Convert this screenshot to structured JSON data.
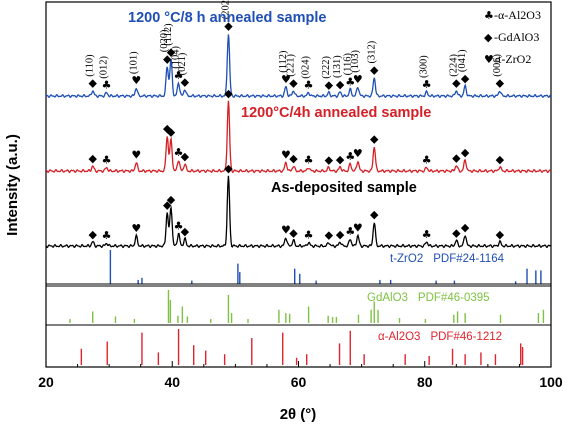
{
  "chart_data": {
    "type": "line",
    "xlabel": "2θ (°)",
    "ylabel": "Intensity (a.u.)",
    "xlim": [
      20,
      100
    ],
    "xticks": [
      "20",
      "40",
      "60",
      "80",
      "100"
    ],
    "legend": [
      {
        "symbol": "♣",
        "label": "-α-Al2O3"
      },
      {
        "symbol": "◆",
        "label": "-GdAlO3"
      },
      {
        "symbol": "♥",
        "label": "-t-ZrO2"
      }
    ],
    "series": [
      {
        "name": "1200 °C/8 h annealed sample",
        "color": "#1f4fb4",
        "peaks": [
          {
            "x": 27.4,
            "h": 0.08,
            "sym": "◆",
            "hkl": "(110)"
          },
          {
            "x": 29.6,
            "h": 0.05,
            "sym": "♣",
            "hkl": "(012)"
          },
          {
            "x": 34.3,
            "h": 0.12,
            "sym": "♥",
            "hkl": "(101)"
          },
          {
            "x": 39.2,
            "h": 0.45,
            "sym": "◆",
            "hkl": "(020)"
          },
          {
            "x": 39.8,
            "h": 0.55,
            "sym": "◆",
            "hkl": "(112)"
          },
          {
            "x": 41.0,
            "h": 0.2,
            "sym": "♣",
            "hkl": "(104)"
          },
          {
            "x": 42.0,
            "h": 0.1,
            "sym": "◆",
            "hkl": "(021)"
          },
          {
            "x": 48.9,
            "h": 0.95,
            "sym": "◆",
            "hkl": "(202)"
          },
          {
            "x": 58.0,
            "h": 0.14,
            "sym": "♥",
            "hkl": "(112)"
          },
          {
            "x": 59.2,
            "h": 0.08,
            "sym": "◆",
            "hkl": "(221)"
          },
          {
            "x": 61.6,
            "h": 0.05,
            "sym": "♣",
            "hkl": "(024)"
          },
          {
            "x": 64.8,
            "h": 0.05,
            "sym": "◆",
            "hkl": "(222)"
          },
          {
            "x": 66.6,
            "h": 0.06,
            "sym": "◆",
            "hkl": "(131)"
          },
          {
            "x": 68.2,
            "h": 0.1,
            "sym": "♣",
            "hkl": "(116)"
          },
          {
            "x": 69.4,
            "h": 0.14,
            "sym": "♥",
            "hkl": "(103)"
          },
          {
            "x": 72.0,
            "h": 0.28,
            "sym": "◆",
            "hkl": "(312)"
          },
          {
            "x": 80.3,
            "h": 0.06,
            "sym": "♣",
            "hkl": "(300)"
          },
          {
            "x": 85.0,
            "h": 0.08,
            "sym": "◆",
            "hkl": "(224)"
          },
          {
            "x": 86.4,
            "h": 0.15,
            "sym": "◆",
            "hkl": "(041)"
          },
          {
            "x": 91.9,
            "h": 0.08,
            "sym": "◆",
            "hkl": "(006)"
          }
        ]
      },
      {
        "name": "1200°C/4h annealed sample",
        "color": "#d42026",
        "peaks": [
          {
            "x": 27.4,
            "h": 0.07,
            "sym": "◆"
          },
          {
            "x": 29.6,
            "h": 0.05,
            "sym": "♣"
          },
          {
            "x": 34.3,
            "h": 0.12,
            "sym": "♥"
          },
          {
            "x": 39.2,
            "h": 0.5,
            "sym": "◆"
          },
          {
            "x": 39.8,
            "h": 0.45,
            "sym": "◆"
          },
          {
            "x": 41.0,
            "h": 0.16,
            "sym": "♣"
          },
          {
            "x": 42.0,
            "h": 0.1,
            "sym": "◆"
          },
          {
            "x": 48.9,
            "h": 1.0,
            "sym": "◆"
          },
          {
            "x": 58.0,
            "h": 0.12,
            "sym": "♥"
          },
          {
            "x": 59.2,
            "h": 0.07,
            "sym": "◆"
          },
          {
            "x": 61.6,
            "h": 0.05,
            "sym": "♣"
          },
          {
            "x": 64.8,
            "h": 0.05,
            "sym": "◆"
          },
          {
            "x": 66.6,
            "h": 0.06,
            "sym": "◆"
          },
          {
            "x": 68.2,
            "h": 0.1,
            "sym": "♣"
          },
          {
            "x": 69.4,
            "h": 0.14,
            "sym": "♥"
          },
          {
            "x": 72.0,
            "h": 0.35,
            "sym": "◆"
          },
          {
            "x": 80.3,
            "h": 0.05,
            "sym": "♣"
          },
          {
            "x": 85.0,
            "h": 0.08,
            "sym": "◆"
          },
          {
            "x": 86.4,
            "h": 0.16,
            "sym": "◆"
          },
          {
            "x": 91.9,
            "h": 0.06,
            "sym": "◆"
          }
        ]
      },
      {
        "name": "As-deposited sample",
        "color": "#000000",
        "peaks": [
          {
            "x": 27.4,
            "h": 0.06,
            "sym": "◆"
          },
          {
            "x": 29.6,
            "h": 0.04,
            "sym": "♣"
          },
          {
            "x": 34.3,
            "h": 0.14,
            "sym": "♥"
          },
          {
            "x": 39.2,
            "h": 0.48,
            "sym": "◆"
          },
          {
            "x": 39.8,
            "h": 0.56,
            "sym": "◆"
          },
          {
            "x": 41.0,
            "h": 0.18,
            "sym": "♣"
          },
          {
            "x": 42.0,
            "h": 0.1,
            "sym": "◆"
          },
          {
            "x": 48.9,
            "h": 1.0,
            "sym": "◆"
          },
          {
            "x": 58.0,
            "h": 0.12,
            "sym": "♥"
          },
          {
            "x": 59.2,
            "h": 0.08,
            "sym": "◆"
          },
          {
            "x": 61.6,
            "h": 0.05,
            "sym": "♣"
          },
          {
            "x": 64.8,
            "h": 0.05,
            "sym": "◆"
          },
          {
            "x": 66.6,
            "h": 0.06,
            "sym": "◆"
          },
          {
            "x": 68.2,
            "h": 0.1,
            "sym": "♣"
          },
          {
            "x": 69.4,
            "h": 0.15,
            "sym": "♥"
          },
          {
            "x": 72.0,
            "h": 0.34,
            "sym": "◆"
          },
          {
            "x": 80.3,
            "h": 0.06,
            "sym": "♣"
          },
          {
            "x": 85.0,
            "h": 0.08,
            "sym": "◆"
          },
          {
            "x": 86.4,
            "h": 0.16,
            "sym": "◆"
          },
          {
            "x": 91.9,
            "h": 0.06,
            "sym": "◆"
          }
        ]
      }
    ],
    "references": [
      {
        "name": "t-ZrO2",
        "pdf": "PDF#24-1164",
        "color": "#1f4fb4",
        "lines": [
          {
            "x": 30.2,
            "h": 1.0
          },
          {
            "x": 34.6,
            "h": 0.12
          },
          {
            "x": 35.2,
            "h": 0.18
          },
          {
            "x": 43.1,
            "h": 0.1
          },
          {
            "x": 50.4,
            "h": 0.6
          },
          {
            "x": 50.7,
            "h": 0.35
          },
          {
            "x": 59.4,
            "h": 0.45
          },
          {
            "x": 60.2,
            "h": 0.3
          },
          {
            "x": 62.8,
            "h": 0.1
          },
          {
            "x": 72.9,
            "h": 0.12
          },
          {
            "x": 74.6,
            "h": 0.12
          },
          {
            "x": 81.8,
            "h": 0.1
          },
          {
            "x": 84.7,
            "h": 0.1
          },
          {
            "x": 94.4,
            "h": 0.08
          },
          {
            "x": 96.2,
            "h": 0.45
          },
          {
            "x": 97.6,
            "h": 0.4
          },
          {
            "x": 98.4,
            "h": 0.4
          }
        ]
      },
      {
        "name": "GdAlO3",
        "pdf": "PDF#46-0395",
        "color": "#7dc242",
        "lines": [
          {
            "x": 23.8,
            "h": 0.12
          },
          {
            "x": 27.4,
            "h": 0.35
          },
          {
            "x": 31.0,
            "h": 0.2
          },
          {
            "x": 34.0,
            "h": 0.12
          },
          {
            "x": 39.4,
            "h": 1.0
          },
          {
            "x": 39.7,
            "h": 0.7
          },
          {
            "x": 40.9,
            "h": 0.22
          },
          {
            "x": 41.6,
            "h": 0.5
          },
          {
            "x": 42.4,
            "h": 0.2
          },
          {
            "x": 46.1,
            "h": 0.12
          },
          {
            "x": 48.9,
            "h": 0.85
          },
          {
            "x": 49.4,
            "h": 0.3
          },
          {
            "x": 52.0,
            "h": 0.12
          },
          {
            "x": 56.9,
            "h": 0.4
          },
          {
            "x": 58.0,
            "h": 0.3
          },
          {
            "x": 58.6,
            "h": 0.28
          },
          {
            "x": 61.6,
            "h": 0.5
          },
          {
            "x": 64.7,
            "h": 0.22
          },
          {
            "x": 65.4,
            "h": 0.18
          },
          {
            "x": 66.0,
            "h": 0.18
          },
          {
            "x": 69.5,
            "h": 0.25
          },
          {
            "x": 71.5,
            "h": 0.4
          },
          {
            "x": 72.0,
            "h": 0.65
          },
          {
            "x": 72.6,
            "h": 0.4
          },
          {
            "x": 76.0,
            "h": 0.15
          },
          {
            "x": 80.1,
            "h": 0.12
          },
          {
            "x": 84.6,
            "h": 0.25
          },
          {
            "x": 85.2,
            "h": 0.35
          },
          {
            "x": 86.4,
            "h": 0.3
          },
          {
            "x": 92.0,
            "h": 0.25
          },
          {
            "x": 98.0,
            "h": 0.3
          },
          {
            "x": 98.8,
            "h": 0.4
          }
        ]
      },
      {
        "name": "α-Al2O3",
        "pdf": "PDF#46-1212",
        "color": "#e0242d",
        "lines": [
          {
            "x": 25.6,
            "h": 0.45
          },
          {
            "x": 29.7,
            "h": 0.65
          },
          {
            "x": 35.2,
            "h": 0.9
          },
          {
            "x": 37.8,
            "h": 0.35
          },
          {
            "x": 41.0,
            "h": 1.0
          },
          {
            "x": 43.4,
            "h": 0.55
          },
          {
            "x": 45.3,
            "h": 0.4
          },
          {
            "x": 48.3,
            "h": 0.3
          },
          {
            "x": 52.6,
            "h": 0.75
          },
          {
            "x": 57.5,
            "h": 0.9
          },
          {
            "x": 59.7,
            "h": 0.2
          },
          {
            "x": 61.3,
            "h": 0.3
          },
          {
            "x": 66.5,
            "h": 0.6
          },
          {
            "x": 68.2,
            "h": 0.95
          },
          {
            "x": 70.4,
            "h": 0.3
          },
          {
            "x": 76.9,
            "h": 0.3
          },
          {
            "x": 80.7,
            "h": 0.25
          },
          {
            "x": 84.4,
            "h": 0.45
          },
          {
            "x": 86.4,
            "h": 0.3
          },
          {
            "x": 88.9,
            "h": 0.35
          },
          {
            "x": 91.2,
            "h": 0.3
          },
          {
            "x": 95.2,
            "h": 0.6
          },
          {
            "x": 95.5,
            "h": 0.5
          }
        ]
      }
    ]
  }
}
